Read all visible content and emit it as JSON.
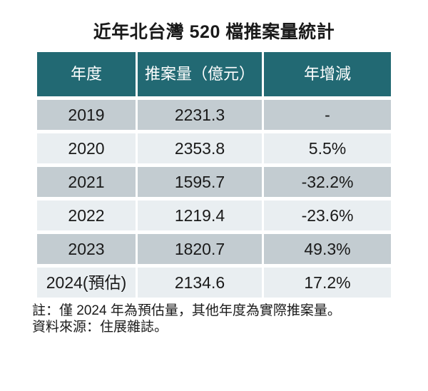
{
  "title": "近年北台灣 520 檔推案量統計",
  "table": {
    "headers": [
      "年度",
      "推案量（億元）",
      "年增減"
    ],
    "rows": [
      [
        "2019",
        "2231.3",
        "-"
      ],
      [
        "2020",
        "2353.8",
        "5.5%"
      ],
      [
        "2021",
        "1595.7",
        "-32.2%"
      ],
      [
        "2022",
        "1219.4",
        "-23.6%"
      ],
      [
        "2023",
        "1820.7",
        "49.3%"
      ],
      [
        "2024(預估)",
        "2134.6",
        "17.2%"
      ]
    ]
  },
  "notes": [
    "註：僅 2024 年為預估量，其他年度為實際推案量。",
    "資料來源：住展雜誌。"
  ],
  "colors": {
    "header_bg": "#226973",
    "row_dark": "#c3ccd1",
    "row_light": "#e9eef1",
    "text": "#1a1a1a",
    "header_text": "#ffffff",
    "page_bg": "#ffffff"
  },
  "chart_data": {
    "type": "table",
    "title": "近年北台灣 520 檔推案量統計",
    "columns": [
      "年度",
      "推案量（億元）",
      "年增減"
    ],
    "categories": [
      "2019",
      "2020",
      "2021",
      "2022",
      "2023",
      "2024(預估)"
    ],
    "series": [
      {
        "name": "推案量（億元）",
        "values": [
          2231.3,
          2353.8,
          1595.7,
          1219.4,
          1820.7,
          2134.6
        ]
      },
      {
        "name": "年增減(%)",
        "values": [
          null,
          5.5,
          -32.2,
          -23.6,
          49.3,
          17.2
        ]
      }
    ],
    "notes": [
      "註：僅 2024 年為預估量，其他年度為實際推案量。",
      "資料來源：住展雜誌。"
    ],
    "layout": {
      "header_position": "top",
      "row_striping": true,
      "grid": false
    }
  }
}
